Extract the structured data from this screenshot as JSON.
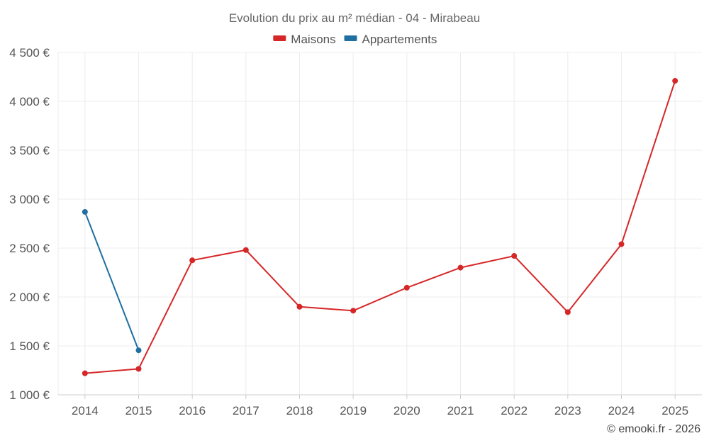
{
  "chart_data": {
    "type": "line",
    "title": "Evolution du prix au m² médian - 04 - Mirabeau",
    "categories": [
      "2014",
      "2015",
      "2016",
      "2017",
      "2018",
      "2019",
      "2020",
      "2021",
      "2022",
      "2023",
      "2024",
      "2025"
    ],
    "series": [
      {
        "name": "Maisons",
        "color": "#d62728",
        "values": [
          1220,
          1265,
          2375,
          2480,
          1900,
          1860,
          2095,
          2300,
          2420,
          1845,
          2540,
          4210
        ]
      },
      {
        "name": "Appartements",
        "color": "#1f6fa0",
        "values": [
          2870,
          1455,
          null,
          null,
          null,
          null,
          null,
          null,
          null,
          null,
          null,
          null
        ]
      }
    ],
    "ylim": [
      1000,
      4500
    ],
    "yticks": [
      1000,
      1500,
      2000,
      2500,
      3000,
      3500,
      4000,
      4500
    ],
    "ytick_labels": [
      "1 000 €",
      "1 500 €",
      "2 000 €",
      "2 500 €",
      "3 000 €",
      "3 500 €",
      "4 000 €",
      "4 500 €"
    ],
    "legend_position": "top-center",
    "grid": true
  },
  "credit": "© emooki.fr - 2026"
}
